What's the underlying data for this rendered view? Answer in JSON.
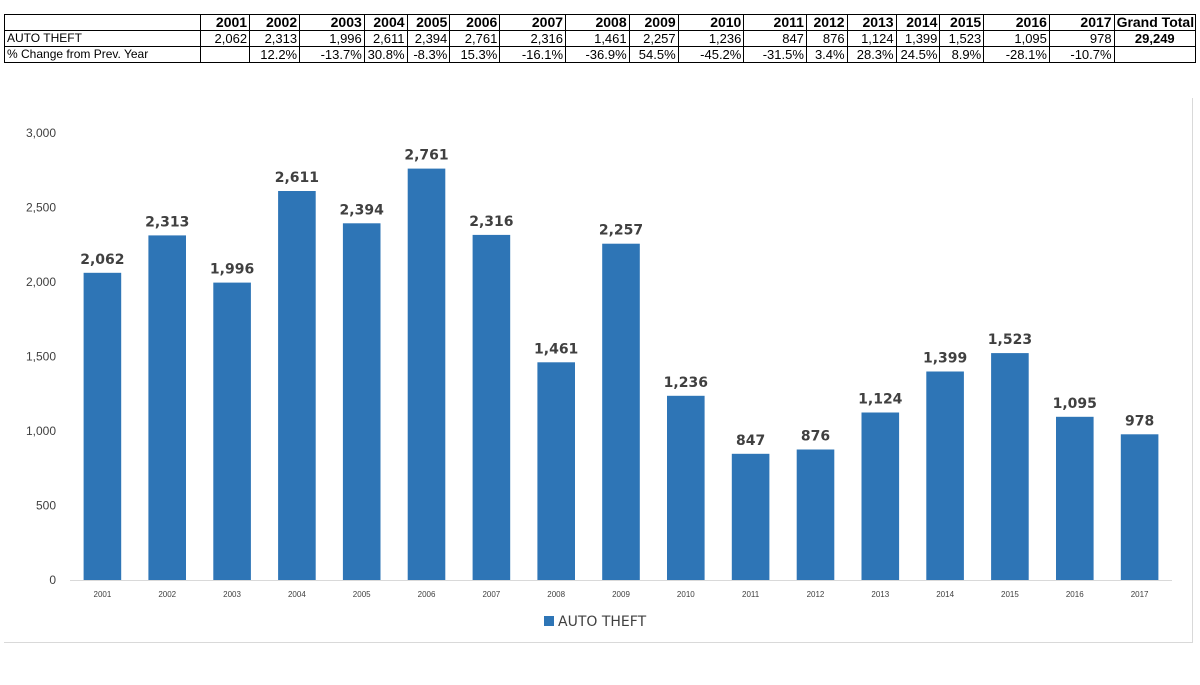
{
  "table": {
    "years": [
      "2001",
      "2002",
      "2003",
      "2004",
      "2005",
      "2006",
      "2007",
      "2008",
      "2009",
      "2010",
      "2011",
      "2012",
      "2013",
      "2014",
      "2015",
      "2016",
      "2017"
    ],
    "grand_total_header": "Grand Total",
    "rows": [
      {
        "label": "AUTO THEFT",
        "cells": [
          "2,062",
          "2,313",
          "1,996",
          "2,611",
          "2,394",
          "2,761",
          "2,316",
          "1,461",
          "2,257",
          "1,236",
          "847",
          "876",
          "1,124",
          "1,399",
          "1,523",
          "1,095",
          "978"
        ],
        "total": "29,249"
      },
      {
        "label": "% Change from Prev. Year",
        "cells": [
          "",
          "12.2%",
          "-13.7%",
          "30.8%",
          "-8.3%",
          "15.3%",
          "-16.1%",
          "-36.9%",
          "54.5%",
          "-45.2%",
          "-31.5%",
          "3.4%",
          "28.3%",
          "24.5%",
          "8.9%",
          "-28.1%",
          "-10.7%"
        ],
        "total": ""
      }
    ]
  },
  "chart_data": {
    "type": "bar",
    "categories": [
      "2001",
      "2002",
      "2003",
      "2004",
      "2005",
      "2006",
      "2007",
      "2008",
      "2009",
      "2010",
      "2011",
      "2012",
      "2013",
      "2014",
      "2015",
      "2016",
      "2017"
    ],
    "series": [
      {
        "name": "AUTO THEFT",
        "values": [
          2062,
          2313,
          1996,
          2611,
          2394,
          2761,
          2316,
          1461,
          2257,
          1236,
          847,
          876,
          1124,
          1399,
          1523,
          1095,
          978
        ],
        "data_labels": [
          "2,062",
          "2,313",
          "1,996",
          "2,611",
          "2,394",
          "2,761",
          "2,316",
          "1,461",
          "2,257",
          "1,236",
          "847",
          "876",
          "1,124",
          "1,399",
          "1,523",
          "1,095",
          "978"
        ],
        "color": "#2E75B6"
      }
    ],
    "title": "",
    "xlabel": "",
    "ylabel": "",
    "ylim": [
      0,
      3000
    ],
    "yticks": [
      0,
      500,
      1000,
      1500,
      2000,
      2500,
      3000
    ],
    "ytick_labels": [
      "0",
      "500",
      "1,000",
      "1,500",
      "2,000",
      "2,500",
      "3,000"
    ],
    "grid": false,
    "legend": "bottom"
  }
}
